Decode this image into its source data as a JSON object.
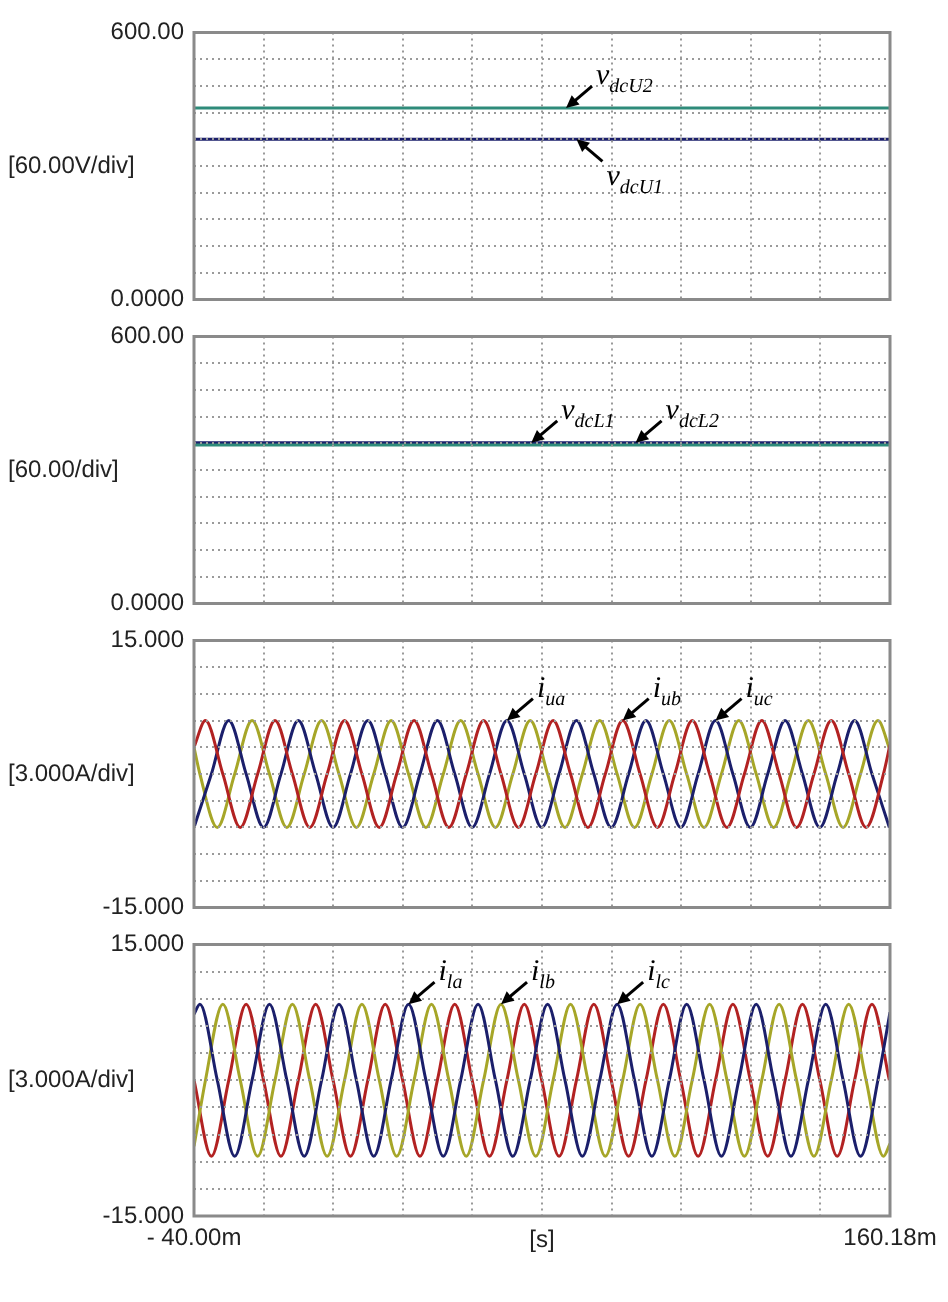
{
  "chart_data": [
    {
      "type": "line",
      "ylabel": "[60.00V/div]",
      "xlim": [
        -40,
        160.18
      ],
      "xticks": [
        {
          "value": -40,
          "label": null
        },
        {
          "value": -19.982,
          "label": null
        },
        {
          "value": 0.036,
          "label": null
        },
        {
          "value": 20.054,
          "label": null
        },
        {
          "value": 40.072,
          "label": null
        },
        {
          "value": 60.09,
          "label": null
        },
        {
          "value": 80.108,
          "label": null
        },
        {
          "value": 100.126,
          "label": null
        },
        {
          "value": 120.144,
          "label": null
        },
        {
          "value": 140.162,
          "label": null
        },
        {
          "value": 160.18,
          "label": null
        }
      ],
      "ylim": [
        0,
        600
      ],
      "yticks": [
        {
          "value": 0,
          "label": "0.0000"
        },
        {
          "value": 60,
          "label": null
        },
        {
          "value": 120,
          "label": null
        },
        {
          "value": 180,
          "label": null
        },
        {
          "value": 240,
          "label": null
        },
        {
          "value": 300,
          "label": null
        },
        {
          "value": 360,
          "label": null
        },
        {
          "value": 420,
          "label": null
        },
        {
          "value": 480,
          "label": null
        },
        {
          "value": 540,
          "label": null
        },
        {
          "value": 600,
          "label": "600.00"
        }
      ],
      "grid": true,
      "tick_labels": "y",
      "series": [
        {
          "color": "#2e8b7a",
          "x": [
            -40,
            160.18
          ],
          "values": [
            430,
            430
          ]
        },
        {
          "color": "#1b1f6b",
          "x": [
            -40,
            160.18
          ],
          "values": [
            360,
            360
          ]
        }
      ],
      "annotations": [
        {
          "text": "v$_{dcU2}$",
          "x": 67,
          "y": 430
        },
        {
          "text": "v$_{dcU1}$",
          "x": 70,
          "y": 360
        }
      ]
    },
    {
      "type": "line",
      "ylabel": "[60.00/div]",
      "xlim": [
        -40,
        160.18
      ],
      "xticks": [
        {
          "value": -40,
          "label": null
        },
        {
          "value": -19.982,
          "label": null
        },
        {
          "value": 0.036,
          "label": null
        },
        {
          "value": 20.054,
          "label": null
        },
        {
          "value": 40.072,
          "label": null
        },
        {
          "value": 60.09,
          "label": null
        },
        {
          "value": 80.108,
          "label": null
        },
        {
          "value": 100.126,
          "label": null
        },
        {
          "value": 120.144,
          "label": null
        },
        {
          "value": 140.162,
          "label": null
        },
        {
          "value": 160.18,
          "label": null
        }
      ],
      "ylim": [
        0,
        600
      ],
      "yticks": [
        {
          "value": 0,
          "label": "0.0000"
        },
        {
          "value": 60,
          "label": null
        },
        {
          "value": 120,
          "label": null
        },
        {
          "value": 180,
          "label": null
        },
        {
          "value": 240,
          "label": null
        },
        {
          "value": 300,
          "label": null
        },
        {
          "value": 360,
          "label": null
        },
        {
          "value": 420,
          "label": null
        },
        {
          "value": 480,
          "label": null
        },
        {
          "value": 540,
          "label": null
        },
        {
          "value": 600,
          "label": "600.00"
        }
      ],
      "grid": true,
      "tick_labels": "y",
      "series": [
        {
          "color": "#2e8b7a",
          "x": [
            -40,
            160.18
          ],
          "values": [
            356,
            356
          ]
        },
        {
          "color": "#1b1f6b",
          "x": [
            -40,
            160.18
          ],
          "values": [
            361,
            361
          ]
        }
      ],
      "annotations": [
        {
          "text": "v$_{dcL1}$",
          "x": 57,
          "y": 361
        },
        {
          "text": "v$_{dcL2}$",
          "x": 87,
          "y": 361
        }
      ]
    },
    {
      "type": "line",
      "ylabel": "[3.000A/div]",
      "xlim": [
        -40,
        160.18
      ],
      "xticks": [
        {
          "value": -40,
          "label": null
        },
        {
          "value": -19.982,
          "label": null
        },
        {
          "value": 0.036,
          "label": null
        },
        {
          "value": 20.054,
          "label": null
        },
        {
          "value": 40.072,
          "label": null
        },
        {
          "value": 60.09,
          "label": null
        },
        {
          "value": 80.108,
          "label": null
        },
        {
          "value": 100.126,
          "label": null
        },
        {
          "value": 120.144,
          "label": null
        },
        {
          "value": 140.162,
          "label": null
        },
        {
          "value": 160.18,
          "label": null
        }
      ],
      "ylim": [
        -15,
        15
      ],
      "yticks": [
        {
          "value": -15,
          "label": "-15.000"
        },
        {
          "value": -12,
          "label": null
        },
        {
          "value": -9,
          "label": null
        },
        {
          "value": -6,
          "label": null
        },
        {
          "value": -3,
          "label": null
        },
        {
          "value": 0,
          "label": null
        },
        {
          "value": 3,
          "label": null
        },
        {
          "value": 6,
          "label": null
        },
        {
          "value": 9,
          "label": null
        },
        {
          "value": 12,
          "label": null
        },
        {
          "value": 15,
          "label": "15.000"
        }
      ],
      "grid": true,
      "tick_labels": "y",
      "series": [
        {
          "color": "#b22222",
          "x": [
            -40,
            -36.7,
            -31.7,
            -26.7,
            -21.7,
            -16.7,
            -11.7,
            -6.7,
            -1.7,
            3.3,
            8.3,
            13.3,
            18.3,
            23.3,
            28.3,
            33.3,
            38.3,
            43.3,
            48.3,
            53.3,
            58.3,
            63.3,
            68.3,
            73.3,
            78.3,
            83.3,
            88.3,
            93.3,
            98.3,
            103.3,
            108.3,
            113.3,
            118.3,
            123.3,
            128.3,
            133.3,
            138.3,
            143.3,
            148.3,
            153.3,
            158.3,
            160.18
          ],
          "values": [
            3,
            6,
            0,
            -6,
            0,
            6,
            0,
            -6,
            0,
            6,
            0,
            -6,
            0,
            6,
            0,
            -6,
            0,
            6,
            0,
            -6,
            0,
            6,
            0,
            -6,
            0,
            6,
            0,
            -6,
            0,
            6,
            0,
            -6,
            0,
            6,
            0,
            -6,
            0,
            6,
            0,
            -6,
            0,
            3.3
          ]
        },
        {
          "color": "#1b1f6b",
          "x": [
            -40,
            -35,
            -30,
            -25,
            -20,
            -15,
            -10,
            -5,
            0,
            5,
            10,
            15,
            20,
            25,
            30,
            35,
            40,
            45,
            50,
            55,
            60,
            65,
            70,
            75,
            80,
            85,
            90,
            95,
            100,
            105,
            110,
            115,
            120,
            125,
            130,
            135,
            140,
            145,
            150,
            155,
            160
          ],
          "values": [
            -6,
            0,
            6,
            0,
            -6,
            0,
            6,
            0,
            -6,
            0,
            6,
            0,
            -6,
            0,
            6,
            0,
            -6,
            0,
            6,
            0,
            -6,
            0,
            6,
            0,
            -6,
            0,
            6,
            0,
            -6,
            0,
            6,
            0,
            -6,
            0,
            6,
            0,
            -6,
            0,
            6,
            0,
            -6
          ]
        },
        {
          "color": "#a6a628",
          "x": [
            -40,
            -38.3,
            -33.3,
            -28.3,
            -23.3,
            -18.3,
            -13.3,
            -8.3,
            -3.3,
            1.7,
            6.7,
            11.7,
            16.7,
            21.7,
            26.7,
            31.7,
            36.7,
            41.7,
            46.7,
            51.7,
            56.7,
            61.7,
            66.7,
            71.7,
            76.7,
            81.7,
            86.7,
            91.7,
            96.7,
            101.7,
            106.7,
            111.7,
            116.7,
            121.7,
            126.7,
            131.7,
            136.7,
            141.7,
            146.7,
            151.7,
            156.7,
            160.18
          ],
          "values": [
            3,
            0,
            -6,
            0,
            6,
            0,
            -6,
            0,
            6,
            0,
            -6,
            0,
            6,
            0,
            -6,
            0,
            6,
            0,
            -6,
            0,
            6,
            0,
            -6,
            0,
            6,
            0,
            -6,
            0,
            6,
            0,
            -6,
            0,
            6,
            0,
            -6,
            0,
            6,
            0,
            -6,
            0,
            6,
            2.7
          ]
        }
      ],
      "annotations": [
        {
          "text": "i$_{ua}$",
          "x": 50,
          "y": 6
        },
        {
          "text": "i$_{ub}$",
          "x": 83.3,
          "y": 6
        },
        {
          "text": "i$_{uc}$",
          "x": 110,
          "y": 6
        }
      ]
    },
    {
      "type": "line",
      "ylabel": "[3.000A/div]",
      "xlabel": "[s]",
      "xlim": [
        -40,
        160.18
      ],
      "xticks": [
        {
          "value": -40,
          "label": "- 40.00m"
        },
        {
          "value": -19.982,
          "label": null
        },
        {
          "value": 0.036,
          "label": null
        },
        {
          "value": 20.054,
          "label": null
        },
        {
          "value": 40.072,
          "label": null
        },
        {
          "value": 60.09,
          "label": null
        },
        {
          "value": 80.108,
          "label": null
        },
        {
          "value": 100.126,
          "label": null
        },
        {
          "value": 120.144,
          "label": null
        },
        {
          "value": 140.162,
          "label": null
        },
        {
          "value": 160.18,
          "label": "160.18m"
        }
      ],
      "ylim": [
        -15,
        15
      ],
      "yticks": [
        {
          "value": -15,
          "label": "-15.000"
        },
        {
          "value": -12,
          "label": null
        },
        {
          "value": -9,
          "label": null
        },
        {
          "value": -6,
          "label": null
        },
        {
          "value": -3,
          "label": null
        },
        {
          "value": 0,
          "label": null
        },
        {
          "value": 3,
          "label": null
        },
        {
          "value": 6,
          "label": null
        },
        {
          "value": 9,
          "label": null
        },
        {
          "value": 12,
          "label": null
        },
        {
          "value": 15,
          "label": "15.000"
        }
      ],
      "grid": true,
      "series": [
        {
          "color": "#1b1f6b",
          "x": [
            -40,
            -38.3,
            -33.3,
            -28.3,
            -23.3,
            -18.3,
            -13.3,
            -8.3,
            -3.3,
            1.7,
            6.7,
            11.7,
            16.7,
            21.7,
            26.7,
            31.7,
            36.7,
            41.7,
            46.7,
            51.7,
            56.7,
            61.7,
            66.7,
            71.7,
            76.7,
            81.7,
            86.7,
            91.7,
            96.7,
            101.7,
            106.7,
            111.7,
            116.7,
            121.7,
            126.7,
            131.7,
            136.7,
            141.7,
            146.7,
            151.7,
            156.7,
            160.18
          ],
          "values": [
            7.3,
            8.4,
            0,
            -8.4,
            0,
            8.4,
            0,
            -8.4,
            0,
            8.4,
            0,
            -8.4,
            0,
            8.4,
            0,
            -8.4,
            0,
            8.4,
            0,
            -8.4,
            0,
            8.4,
            0,
            -8.4,
            0,
            8.4,
            0,
            -8.4,
            0,
            8.4,
            0,
            -8.4,
            0,
            8.4,
            0,
            -8.4,
            0,
            8.4,
            0,
            -8.4,
            0,
            7.5
          ]
        },
        {
          "color": "#a6a628",
          "x": [
            -40,
            -36.7,
            -31.7,
            -26.7,
            -21.7,
            -16.7,
            -11.7,
            -6.7,
            -1.7,
            3.3,
            8.3,
            13.3,
            18.3,
            23.3,
            28.3,
            33.3,
            38.3,
            43.3,
            48.3,
            53.3,
            58.3,
            63.3,
            68.3,
            73.3,
            78.3,
            83.3,
            88.3,
            93.3,
            98.3,
            103.3,
            108.3,
            113.3,
            118.3,
            123.3,
            128.3,
            133.3,
            138.3,
            143.3,
            148.3,
            153.3,
            158.3,
            160.18
          ],
          "values": [
            -7.3,
            0,
            8.4,
            0,
            -8.4,
            0,
            8.4,
            0,
            -8.4,
            0,
            8.4,
            0,
            -8.4,
            0,
            8.4,
            0,
            -8.4,
            0,
            8.4,
            0,
            -8.4,
            0,
            8.4,
            0,
            -8.4,
            0,
            8.4,
            0,
            -8.4,
            0,
            8.4,
            0,
            -8.4,
            0,
            8.4,
            0,
            -8.4,
            0,
            8.4,
            0,
            -8.4,
            -7
          ]
        },
        {
          "color": "#b22222",
          "x": [
            -40,
            -35,
            -30,
            -25,
            -20,
            -15,
            -10,
            -5,
            0,
            5,
            10,
            15,
            20,
            25,
            30,
            35,
            40,
            45,
            50,
            55,
            60,
            65,
            70,
            75,
            80,
            85,
            90,
            95,
            100,
            105,
            110,
            115,
            120,
            125,
            130,
            135,
            140,
            145,
            150,
            155,
            160
          ],
          "values": [
            0,
            -8.4,
            0,
            8.4,
            0,
            -8.4,
            0,
            8.4,
            0,
            -8.4,
            0,
            8.4,
            0,
            -8.4,
            0,
            8.4,
            0,
            -8.4,
            0,
            8.4,
            0,
            -8.4,
            0,
            8.4,
            0,
            -8.4,
            0,
            8.4,
            0,
            -8.4,
            0,
            8.4,
            0,
            -8.4,
            0,
            8.4,
            0,
            -8.4,
            0,
            8.4,
            0
          ]
        }
      ],
      "annotations": [
        {
          "text": "i$_{la}$",
          "x": 21.7,
          "y": 8.4
        },
        {
          "text": "i$_{lb}$",
          "x": 48.3,
          "y": 8.4
        },
        {
          "text": "i$_{lc}$",
          "x": 81.7,
          "y": 8.4
        }
      ]
    }
  ]
}
